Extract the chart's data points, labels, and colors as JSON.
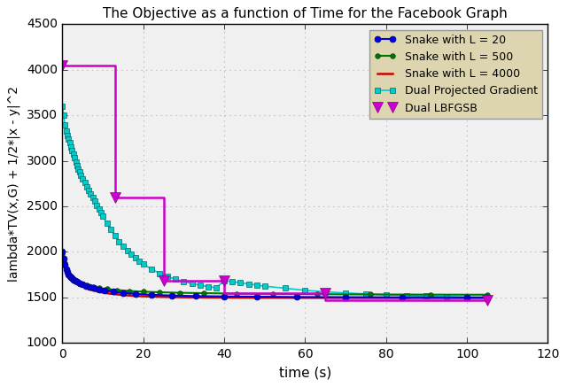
{
  "title": "The Objective as a function of Time for the Facebook Graph",
  "xlabel": "time (s)",
  "ylabel": "lambda*TV(x,G) + 1/2*|x - y|^2",
  "xlim": [
    0,
    120
  ],
  "ylim": [
    1000,
    4500
  ],
  "yticks": [
    1000,
    1500,
    2000,
    2500,
    3000,
    3500,
    4000,
    4500
  ],
  "xticks": [
    0,
    20,
    40,
    60,
    80,
    100,
    120
  ],
  "legend_facecolor": "#ddd5b0",
  "background_color": "#f0f0f0",
  "grid_color": "#bbbbbb",
  "series": {
    "snake_L20": {
      "label": "Snake with L = 20",
      "color": "#0000dd",
      "marker": "o",
      "markersize": 5,
      "linewidth": 1.5,
      "x": [
        0.0,
        0.3,
        0.6,
        0.9,
        1.2,
        1.5,
        1.8,
        2.1,
        2.4,
        2.8,
        3.2,
        3.7,
        4.2,
        5.0,
        5.8,
        6.7,
        7.7,
        9.0,
        10.5,
        12.5,
        15.0,
        18.0,
        22.0,
        27.0,
        33.0,
        40.0,
        48.0,
        58.0,
        70.0,
        84.0,
        100.0,
        105.0
      ],
      "y": [
        2000,
        1930,
        1860,
        1810,
        1780,
        1755,
        1735,
        1720,
        1710,
        1695,
        1683,
        1668,
        1655,
        1640,
        1625,
        1612,
        1600,
        1587,
        1575,
        1562,
        1550,
        1538,
        1528,
        1520,
        1514,
        1510,
        1507,
        1504,
        1502,
        1500,
        1499,
        1499
      ]
    },
    "snake_L500": {
      "label": "Snake with L = 500",
      "color": "#007700",
      "marker": "o",
      "markersize": 4,
      "linewidth": 1.5,
      "x": [
        0.0,
        0.5,
        1.0,
        1.5,
        2.0,
        2.5,
        3.0,
        3.5,
        4.0,
        5.0,
        6.0,
        7.5,
        9.0,
        11.0,
        13.5,
        16.5,
        20.0,
        24.0,
        29.0,
        35.0,
        43.0,
        52.0,
        63.0,
        76.0,
        91.0,
        105.0
      ],
      "y": [
        1970,
        1880,
        1810,
        1760,
        1730,
        1710,
        1695,
        1680,
        1667,
        1648,
        1632,
        1616,
        1603,
        1591,
        1580,
        1570,
        1562,
        1556,
        1550,
        1546,
        1541,
        1538,
        1535,
        1532,
        1530,
        1529
      ]
    },
    "snake_L4000": {
      "label": "Snake with L = 4000",
      "color": "#cc0000",
      "marker": null,
      "markersize": 0,
      "linewidth": 1.8,
      "x": [
        0.0,
        1.0,
        2.0,
        3.0,
        4.0,
        5.5,
        7.0,
        9.0,
        11.5,
        15.0,
        19.0,
        24.0,
        30.0,
        38.0,
        48.0,
        60.0,
        75.0,
        92.0,
        105.0
      ],
      "y": [
        1960,
        1820,
        1740,
        1685,
        1645,
        1608,
        1582,
        1560,
        1542,
        1525,
        1513,
        1506,
        1501,
        1498,
        1496,
        1495,
        1494,
        1493,
        1493
      ]
    },
    "dual_proj": {
      "label": "Dual Projected Gradient",
      "color": "#00cccc",
      "marker": "s",
      "markersize": 5,
      "linewidth": 1.2,
      "x": [
        0.0,
        0.3,
        0.6,
        0.9,
        1.2,
        1.5,
        1.8,
        2.1,
        2.4,
        2.7,
        3.0,
        3.3,
        3.6,
        3.9,
        4.2,
        4.5,
        5.0,
        5.5,
        6.0,
        6.5,
        7.0,
        7.5,
        8.0,
        8.5,
        9.0,
        9.5,
        10.0,
        11.0,
        12.0,
        13.0,
        14.0,
        15.0,
        16.0,
        17.0,
        18.0,
        19.0,
        20.0,
        22.0,
        24.0,
        26.0,
        28.0,
        30.0,
        32.0,
        34.0,
        36.0,
        38.0,
        40.0,
        42.0,
        44.0,
        46.0,
        48.0,
        50.0,
        55.0,
        60.0,
        65.0,
        70.0,
        75.0,
        80.0,
        85.0,
        90.0,
        95.0,
        100.0,
        105.0
      ],
      "y": [
        3600,
        3500,
        3390,
        3330,
        3275,
        3240,
        3195,
        3150,
        3110,
        3070,
        3035,
        2990,
        2950,
        2910,
        2875,
        2840,
        2800,
        2760,
        2718,
        2678,
        2638,
        2595,
        2555,
        2510,
        2468,
        2428,
        2388,
        2312,
        2242,
        2175,
        2115,
        2060,
        2010,
        1970,
        1935,
        1900,
        1865,
        1810,
        1765,
        1728,
        1698,
        1673,
        1652,
        1633,
        1618,
        1605,
        1683,
        1672,
        1660,
        1648,
        1635,
        1622,
        1600,
        1577,
        1560,
        1548,
        1538,
        1528,
        1520,
        1513,
        1508,
        1503,
        1499
      ]
    },
    "dual_lbfgsb": {
      "label": "Dual LBFGSB",
      "color": "#cc00cc",
      "marker": "v",
      "markersize": 8,
      "linewidth": 1.8,
      "step_x": [
        0.0,
        13.0,
        13.0,
        25.0,
        25.0,
        40.0,
        40.0,
        65.0,
        65.0,
        105.0
      ],
      "step_y": [
        4050,
        4050,
        2600,
        2600,
        1680,
        1680,
        1550,
        1550,
        1470,
        1470
      ],
      "marker_x": [
        0.0,
        13.0,
        25.0,
        40.0,
        65.0,
        105.0
      ],
      "marker_y": [
        4050,
        2600,
        1680,
        1680,
        1550,
        1470
      ]
    }
  }
}
